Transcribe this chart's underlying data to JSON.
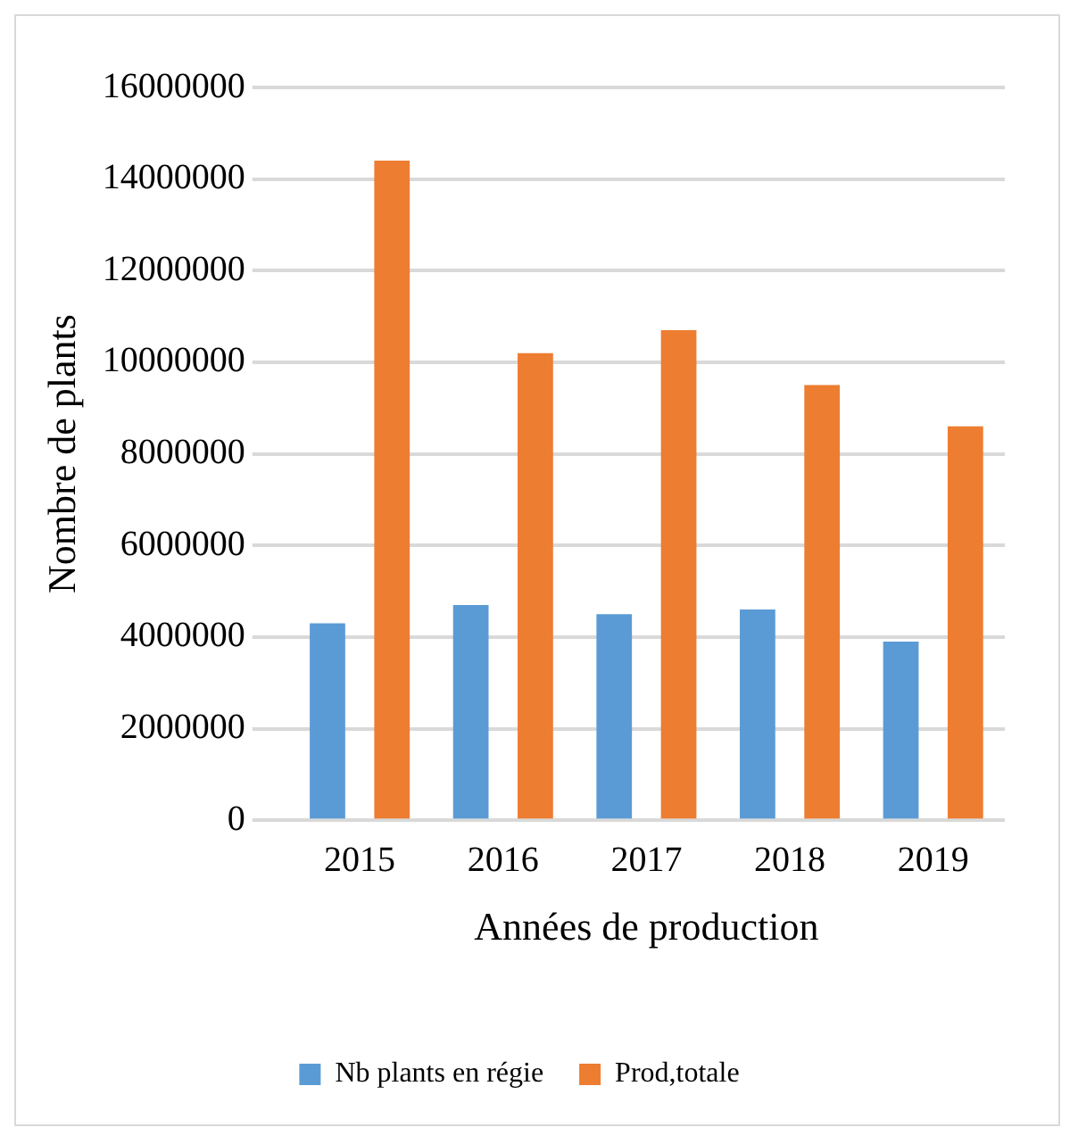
{
  "chart_data": {
    "type": "bar",
    "xlabel": "Années de production",
    "ylabel": "Nombre de plants",
    "categories": [
      "2015",
      "2016",
      "2017",
      "2018",
      "2019"
    ],
    "series": [
      {
        "name": "Nb plants en régie",
        "color": "#5b9bd5",
        "values": [
          4300000,
          4700000,
          4500000,
          4600000,
          3900000
        ]
      },
      {
        "name": "Prod,totale",
        "color": "#ed7d31",
        "values": [
          14400000,
          10200000,
          10700000,
          9500000,
          8600000
        ]
      }
    ],
    "ylim": [
      0,
      16000000
    ],
    "yticks": [
      0,
      2000000,
      4000000,
      6000000,
      8000000,
      10000000,
      12000000,
      14000000,
      16000000
    ],
    "grid": "y",
    "legend": "bottom"
  }
}
